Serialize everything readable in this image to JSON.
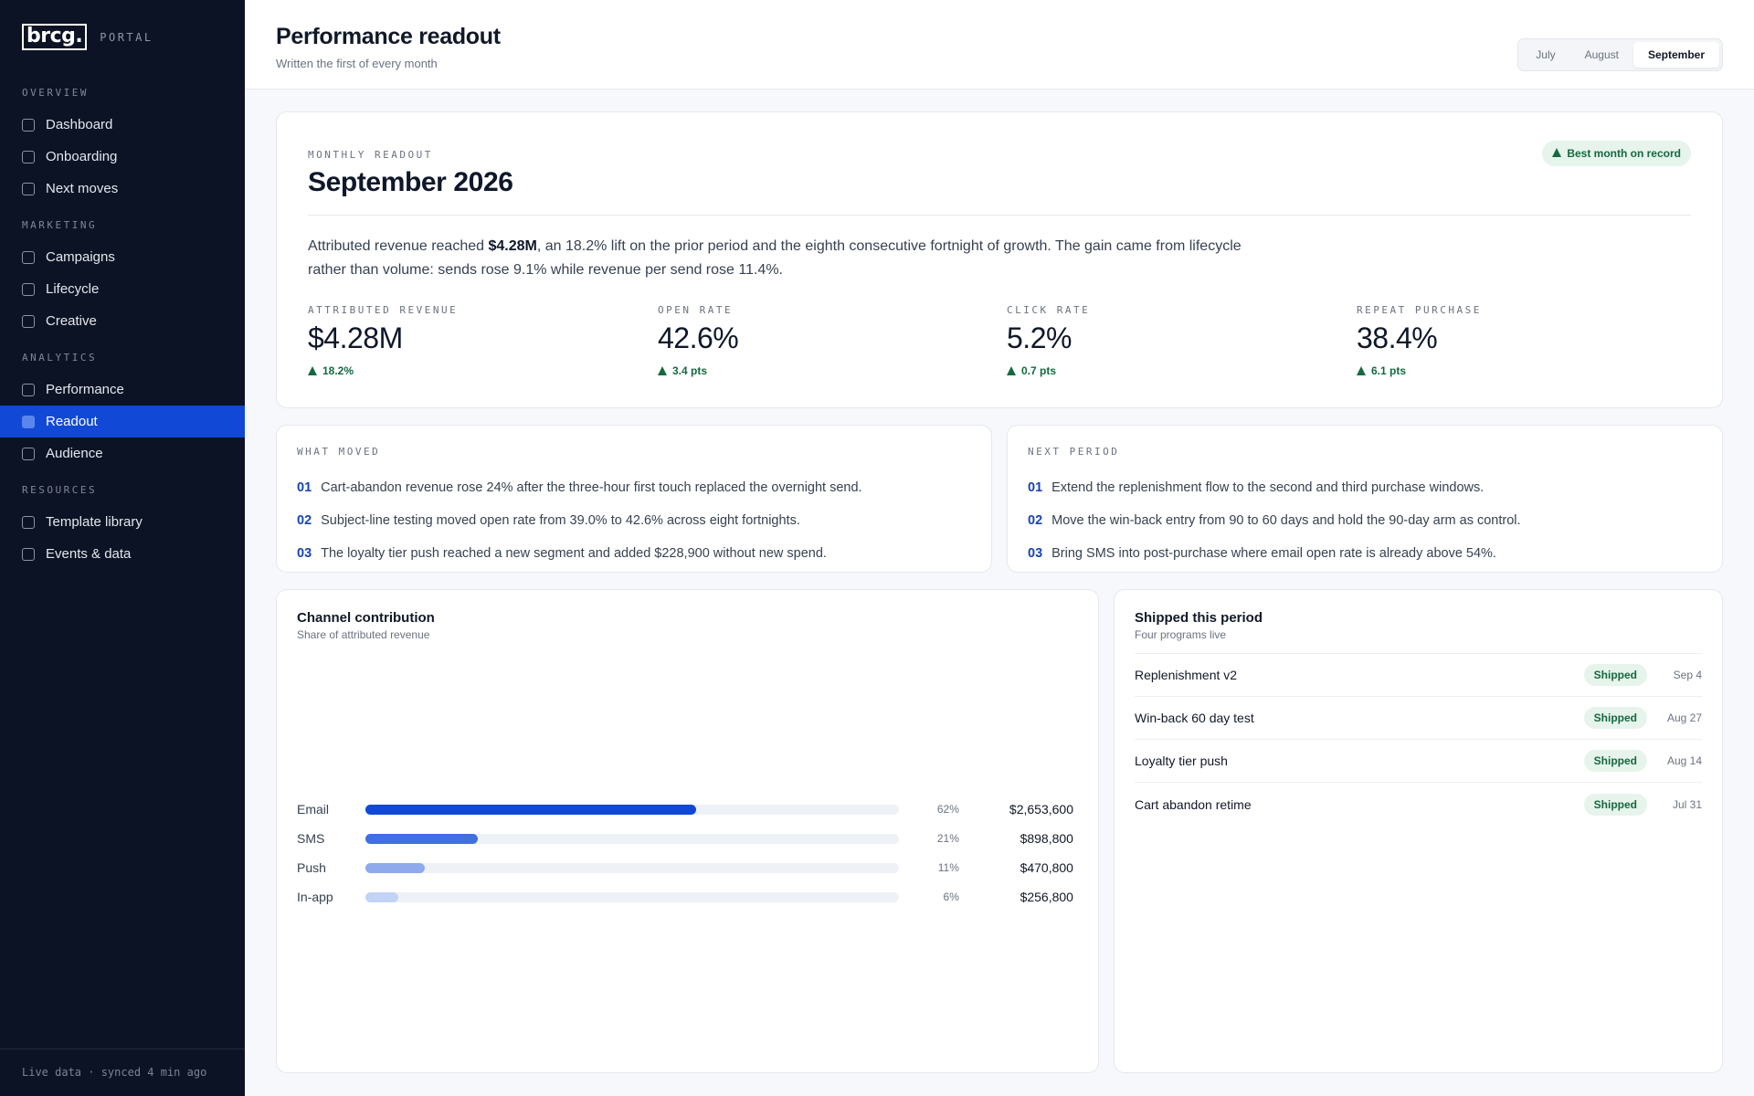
{
  "sidebar": {
    "logo": "brcg.",
    "portal": "PORTAL",
    "sections": [
      {
        "title": "OVERVIEW",
        "items": [
          "Dashboard",
          "Onboarding",
          "Next moves"
        ]
      },
      {
        "title": "MARKETING",
        "items": [
          "Campaigns",
          "Lifecycle",
          "Creative"
        ]
      },
      {
        "title": "ANALYTICS",
        "items": [
          "Performance",
          "Readout",
          "Audience"
        ]
      },
      {
        "title": "RESOURCES",
        "items": [
          "Template library",
          "Events & data"
        ]
      }
    ],
    "active_item": "Readout",
    "footer": "Live data · synced 4 min ago"
  },
  "header": {
    "title": "Performance readout",
    "subtitle": "Written the first of every month",
    "tabs": [
      "July",
      "August",
      "September"
    ],
    "active_tab": "September"
  },
  "readout": {
    "kicker": "MONTHLY READOUT",
    "month": "September 2026",
    "badge": "Best month on record",
    "summary_pre": "Attributed revenue reached ",
    "summary_bold": "$4.28M",
    "summary_post": ", an 18.2% lift on the prior period and the eighth consecutive fortnight of growth. The gain came from lifecycle rather than volume: sends rose 9.1% while revenue per send rose 11.4%.",
    "kpis": [
      {
        "label": "ATTRIBUTED REVENUE",
        "value": "$4.28M",
        "delta": "18.2%"
      },
      {
        "label": "OPEN RATE",
        "value": "42.6%",
        "delta": "3.4 pts"
      },
      {
        "label": "CLICK RATE",
        "value": "5.2%",
        "delta": "0.7 pts"
      },
      {
        "label": "REPEAT PURCHASE",
        "value": "38.4%",
        "delta": "6.1 pts"
      }
    ]
  },
  "what_moved": {
    "label": "WHAT MOVED",
    "items": [
      {
        "n": "01",
        "text": "Cart-abandon revenue rose 24% after the three-hour first touch replaced the overnight send."
      },
      {
        "n": "02",
        "text": "Subject-line testing moved open rate from 39.0% to 42.6% across eight fortnights."
      },
      {
        "n": "03",
        "text": "The loyalty tier push reached a new segment and added $228,900 without new spend."
      }
    ]
  },
  "next_period": {
    "label": "NEXT PERIOD",
    "items": [
      {
        "n": "01",
        "text": "Extend the replenishment flow to the second and third purchase windows."
      },
      {
        "n": "02",
        "text": "Move the win-back entry from 90 to 60 days and hold the 90-day arm as control."
      },
      {
        "n": "03",
        "text": "Bring SMS into post-purchase where email open rate is already above 54%."
      }
    ]
  },
  "channel": {
    "title": "Channel contribution",
    "subtitle": "Share of attributed revenue",
    "colors": [
      "#1149d6",
      "#3f6fe0",
      "#8eaaec",
      "#c3d3f6"
    ]
  },
  "chart_data": {
    "type": "bar",
    "orientation": "horizontal",
    "title": "Channel contribution",
    "subtitle": "Share of attributed revenue",
    "categories": [
      "Email",
      "SMS",
      "Push",
      "In-app"
    ],
    "values": [
      62,
      21,
      11,
      6
    ],
    "pct_labels": [
      "62%",
      "21%",
      "11%",
      "6%"
    ],
    "amounts": [
      "$2,653,600",
      "$898,800",
      "$470,800",
      "$256,800"
    ],
    "xlim": [
      0,
      100
    ]
  },
  "shipped": {
    "title": "Shipped this period",
    "subtitle": "Four programs live",
    "items": [
      {
        "name": "Replenishment v2",
        "status": "Shipped",
        "date": "Sep 4"
      },
      {
        "name": "Win-back 60 day test",
        "status": "Shipped",
        "date": "Aug 27"
      },
      {
        "name": "Loyalty tier push",
        "status": "Shipped",
        "date": "Aug 14"
      },
      {
        "name": "Cart abandon retime",
        "status": "Shipped",
        "date": "Jul 31"
      }
    ]
  }
}
